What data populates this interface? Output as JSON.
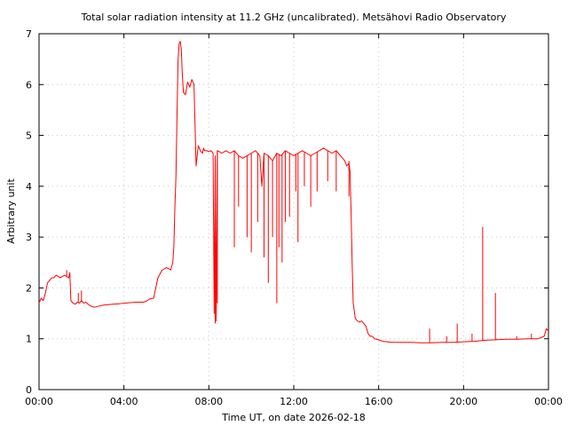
{
  "chart_data": {
    "type": "line",
    "title": "Total solar radiation intensity at 11.2 GHz (uncalibrated). Metsähovi Radio Observatory",
    "xlabel": "Time UT, on date 2026-02-18",
    "ylabel": "Arbitrary unit",
    "xlim": [
      0,
      24
    ],
    "ylim": [
      0,
      7
    ],
    "x_ticks": [
      {
        "value": 0,
        "label": "00:00"
      },
      {
        "value": 4,
        "label": "04:00"
      },
      {
        "value": 8,
        "label": "08:00"
      },
      {
        "value": 12,
        "label": "12:00"
      },
      {
        "value": 16,
        "label": "16:00"
      },
      {
        "value": 20,
        "label": "20:00"
      },
      {
        "value": 24,
        "label": "00:00"
      }
    ],
    "y_ticks": [
      {
        "value": 0,
        "label": "0"
      },
      {
        "value": 1,
        "label": "1"
      },
      {
        "value": 2,
        "label": "2"
      },
      {
        "value": 3,
        "label": "3"
      },
      {
        "value": 4,
        "label": "4"
      },
      {
        "value": 5,
        "label": "5"
      },
      {
        "value": 6,
        "label": "6"
      },
      {
        "value": 7,
        "label": "7"
      }
    ],
    "grid": true,
    "legend": "none",
    "color": "#ff0000",
    "series": [
      {
        "x": [
          0.0,
          0.1,
          0.2,
          0.3,
          0.4,
          0.5,
          0.6,
          0.7,
          0.8,
          1.0,
          1.2,
          1.4,
          1.45,
          1.5,
          1.6,
          1.7,
          1.8,
          1.9,
          2.0,
          2.1,
          2.2,
          2.4,
          2.6,
          2.8,
          3.0,
          3.2,
          3.5,
          3.8,
          4.0,
          4.3,
          4.6,
          4.9,
          5.0,
          5.1,
          5.2,
          5.4,
          5.6,
          5.8,
          6.0,
          6.1,
          6.2,
          6.3,
          6.35,
          6.4,
          6.45,
          6.5,
          6.55,
          6.6,
          6.65,
          6.7,
          6.75,
          6.8,
          6.9,
          7.0,
          7.1,
          7.2,
          7.3,
          7.4,
          7.5,
          7.6,
          7.7,
          7.75,
          7.8,
          7.9,
          8.0,
          8.1,
          8.2,
          8.25,
          8.3,
          8.35,
          8.4,
          8.5,
          8.6,
          8.8,
          9.0,
          9.2,
          9.4,
          9.6,
          9.8,
          10.0,
          10.2,
          10.4,
          10.5,
          10.6,
          10.8,
          11.0,
          11.2,
          11.4,
          11.6,
          11.8,
          12.0,
          12.2,
          12.4,
          12.6,
          12.8,
          13.0,
          13.2,
          13.4,
          13.6,
          13.8,
          14.0,
          14.2,
          14.4,
          14.5,
          14.6,
          14.65,
          14.7,
          14.75,
          14.8,
          14.85,
          14.9,
          15.0,
          15.1,
          15.2,
          15.3,
          15.4,
          15.5,
          15.6,
          15.7,
          15.8,
          16.0,
          16.2,
          16.4,
          16.6,
          17.0,
          17.5,
          18.0,
          18.5,
          19.0,
          19.5,
          20.0,
          20.5,
          21.0,
          21.5,
          22.0,
          22.5,
          23.0,
          23.5,
          23.8,
          23.9,
          24.0
        ],
        "y": [
          1.7,
          1.8,
          1.75,
          1.9,
          2.1,
          2.15,
          2.2,
          2.2,
          2.25,
          2.2,
          2.25,
          2.2,
          2.3,
          1.75,
          1.7,
          1.68,
          1.72,
          1.7,
          1.75,
          1.7,
          1.72,
          1.65,
          1.62,
          1.64,
          1.66,
          1.67,
          1.68,
          1.69,
          1.7,
          1.71,
          1.72,
          1.72,
          1.73,
          1.75,
          1.78,
          1.8,
          2.2,
          2.35,
          2.4,
          2.38,
          2.35,
          2.5,
          2.8,
          3.6,
          4.2,
          5.4,
          6.5,
          6.8,
          6.85,
          6.7,
          6.2,
          5.85,
          5.8,
          6.05,
          5.95,
          6.1,
          6.0,
          4.4,
          4.8,
          4.7,
          4.65,
          4.75,
          4.7,
          4.7,
          4.68,
          4.7,
          4.65,
          1.5,
          4.6,
          1.35,
          4.7,
          4.68,
          4.65,
          4.7,
          4.65,
          4.7,
          4.6,
          4.55,
          4.6,
          4.65,
          4.7,
          4.6,
          4.0,
          4.65,
          4.6,
          4.5,
          4.65,
          4.6,
          4.7,
          4.65,
          4.6,
          4.65,
          4.7,
          4.65,
          4.6,
          4.65,
          4.7,
          4.75,
          4.7,
          4.65,
          4.7,
          4.6,
          4.5,
          4.4,
          4.45,
          4.3,
          3.5,
          2.5,
          1.7,
          1.55,
          1.4,
          1.35,
          1.33,
          1.35,
          1.3,
          1.25,
          1.1,
          1.05,
          1.05,
          1.0,
          0.98,
          0.95,
          0.94,
          0.93,
          0.93,
          0.93,
          0.92,
          0.92,
          0.93,
          0.93,
          0.94,
          0.95,
          0.97,
          0.98,
          0.99,
          0.99,
          1.0,
          1.0,
          1.05,
          1.2,
          1.15
        ]
      }
    ],
    "spikes": [
      {
        "x": 8.3,
        "low": 1.3
      },
      {
        "x": 8.4,
        "low": 1.7
      },
      {
        "x": 9.2,
        "low": 2.8
      },
      {
        "x": 9.4,
        "low": 3.6
      },
      {
        "x": 9.8,
        "low": 3.0
      },
      {
        "x": 10.0,
        "low": 2.7
      },
      {
        "x": 10.3,
        "low": 3.3
      },
      {
        "x": 10.6,
        "low": 2.6
      },
      {
        "x": 10.8,
        "low": 2.1
      },
      {
        "x": 11.0,
        "low": 3.0
      },
      {
        "x": 11.2,
        "low": 1.7
      },
      {
        "x": 11.3,
        "low": 2.8
      },
      {
        "x": 11.45,
        "low": 2.5
      },
      {
        "x": 11.6,
        "low": 3.3
      },
      {
        "x": 11.8,
        "low": 3.4
      },
      {
        "x": 12.1,
        "low": 3.9
      },
      {
        "x": 12.2,
        "low": 2.9
      },
      {
        "x": 12.5,
        "low": 4.0
      },
      {
        "x": 12.8,
        "low": 3.6
      },
      {
        "x": 13.1,
        "low": 3.9
      },
      {
        "x": 13.6,
        "low": 4.1
      },
      {
        "x": 14.0,
        "low": 3.9
      },
      {
        "x": 14.6,
        "low": 3.8
      }
    ],
    "up_spikes": [
      {
        "x": 1.3,
        "high": 2.35
      },
      {
        "x": 1.85,
        "high": 1.9
      },
      {
        "x": 2.0,
        "high": 1.95
      },
      {
        "x": 18.4,
        "high": 1.2
      },
      {
        "x": 19.2,
        "high": 1.05
      },
      {
        "x": 19.7,
        "high": 1.3
      },
      {
        "x": 20.4,
        "high": 1.1
      },
      {
        "x": 20.9,
        "high": 3.2
      },
      {
        "x": 21.5,
        "high": 1.9
      },
      {
        "x": 22.5,
        "high": 1.05
      },
      {
        "x": 23.2,
        "high": 1.1
      }
    ]
  }
}
